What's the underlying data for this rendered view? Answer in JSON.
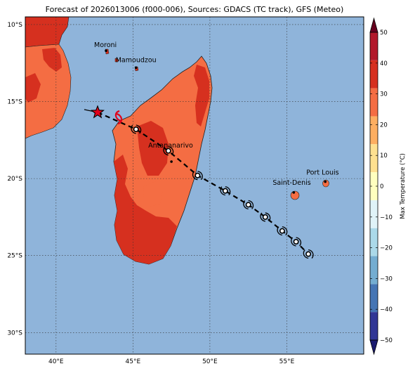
{
  "title": "Forecast of 2026013006 (f000-006), Sources: GDACS (TC track), GFS (Meteo)",
  "map": {
    "ocean_color": "#8fb4da",
    "lat_labels": [
      "10°S",
      "15°S",
      "20°S",
      "25°S",
      "30°S"
    ],
    "lon_labels": [
      "40°E",
      "45°E",
      "50°E",
      "55°E"
    ],
    "lat_values": [
      -10,
      -15,
      -20,
      -25,
      -30
    ],
    "lon_values": [
      40,
      45,
      50,
      55
    ],
    "extent": {
      "lon_min": 38.0,
      "lon_max": 60.0,
      "lat_min": -31.4,
      "lat_max": -9.5
    }
  },
  "cities": [
    {
      "name": "Moroni",
      "lon": 43.25,
      "lat": -11.7
    },
    {
      "name": "Mamoudzou",
      "lon": 45.2,
      "lat": -12.8
    },
    {
      "name": "Antananarivo",
      "lon": 47.5,
      "lat": -18.9
    },
    {
      "name": "Saint-Denis",
      "lon": 55.45,
      "lat": -20.9
    },
    {
      "name": "Port Louis",
      "lon": 57.5,
      "lat": -20.2
    }
  ],
  "track": {
    "current_position": {
      "lon": 42.7,
      "lat": -15.7
    },
    "forecast_points": [
      {
        "lon": 45.2,
        "lat": -16.8
      },
      {
        "lon": 47.3,
        "lat": -18.2
      },
      {
        "lon": 49.2,
        "lat": -19.8
      },
      {
        "lon": 51.0,
        "lat": -20.8
      },
      {
        "lon": 52.5,
        "lat": -21.7
      },
      {
        "lon": 53.6,
        "lat": -22.5
      },
      {
        "lon": 54.7,
        "lat": -23.4
      },
      {
        "lon": 55.6,
        "lat": -24.1
      },
      {
        "lon": 56.4,
        "lat": -24.9
      }
    ]
  },
  "colorbar": {
    "label": "Max Temperature (°C)",
    "ticks": [
      "50",
      "40",
      "30",
      "20",
      "10",
      "0",
      "−10",
      "−20",
      "−30",
      "−40",
      "−50"
    ],
    "colors": [
      "#67001f",
      "#b2182b",
      "#d6301f",
      "#f46d43",
      "#fdae61",
      "#fee090",
      "#ffffbf",
      "#e0f3f8",
      "#abd9e9",
      "#74add1",
      "#4575b4",
      "#313695",
      "#1a1a6e"
    ]
  }
}
